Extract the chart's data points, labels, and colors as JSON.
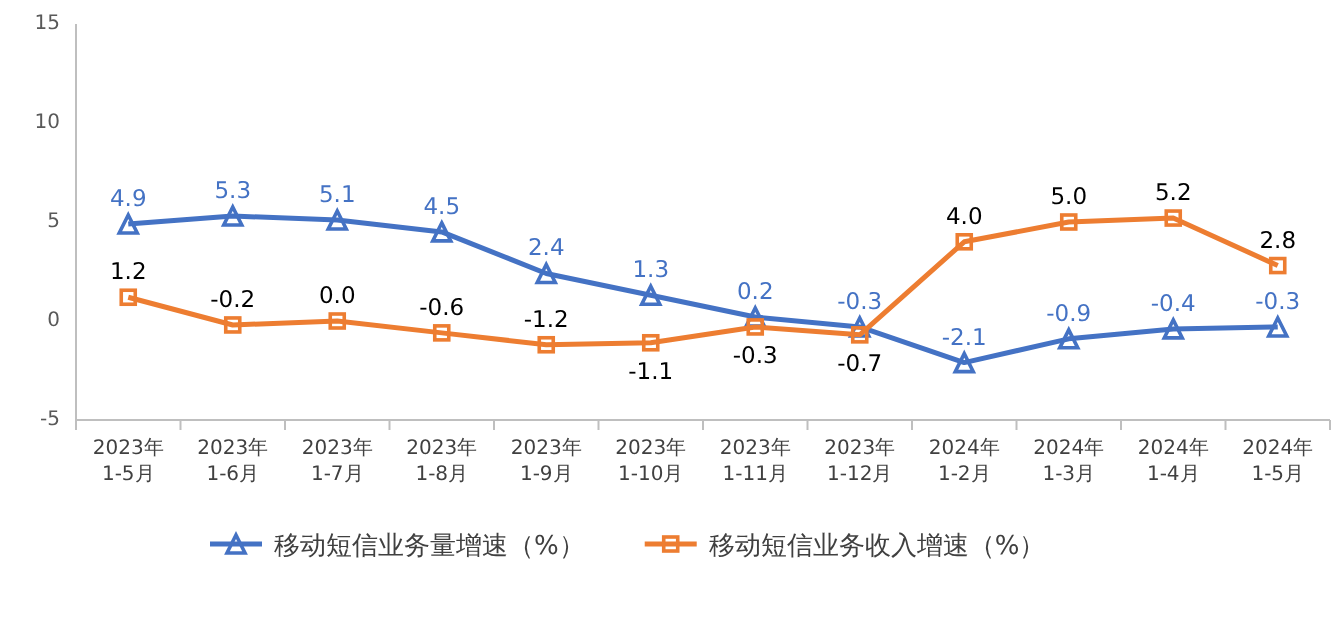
{
  "chart_data": {
    "type": "line",
    "categories": [
      "2023年\n1-5月",
      "2023年\n1-6月",
      "2023年\n1-7月",
      "2023年\n1-8月",
      "2023年\n1-9月",
      "2023年\n1-10月",
      "2023年\n1-11月",
      "2023年\n1-12月",
      "2024年\n1-2月",
      "2024年\n1-3月",
      "2024年\n1-4月",
      "2024年\n1-5月"
    ],
    "series": [
      {
        "name": "移动短信业务量增速（%）",
        "color": "#4472c4",
        "marker": "triangle",
        "values": [
          4.9,
          5.3,
          5.1,
          4.5,
          2.4,
          1.3,
          0.2,
          -0.3,
          -2.1,
          -0.9,
          -0.4,
          -0.3
        ],
        "value_labels": [
          "4.9",
          "5.3",
          "5.1",
          "4.5",
          "2.4",
          "1.3",
          "0.2",
          "-0.3",
          "-2.1",
          "-0.9",
          "-0.4",
          "-0.3"
        ]
      },
      {
        "name": "移动短信业务收入增速（%）",
        "color": "#ed7d31",
        "marker": "square",
        "values": [
          1.2,
          -0.2,
          0.0,
          -0.6,
          -1.2,
          -1.1,
          -0.3,
          -0.7,
          4.0,
          5.0,
          5.2,
          2.8
        ],
        "value_labels": [
          "1.2",
          "-0.2",
          "0.0",
          "-0.6",
          "-1.2",
          "-1.1",
          "-0.3",
          "-0.7",
          "4.0",
          "5.0",
          "5.2",
          "2.8"
        ]
      }
    ],
    "ylim": [
      -5,
      15
    ],
    "yticks": [
      -5,
      0,
      5,
      10,
      15
    ],
    "legend": "bottom",
    "grid": false
  }
}
